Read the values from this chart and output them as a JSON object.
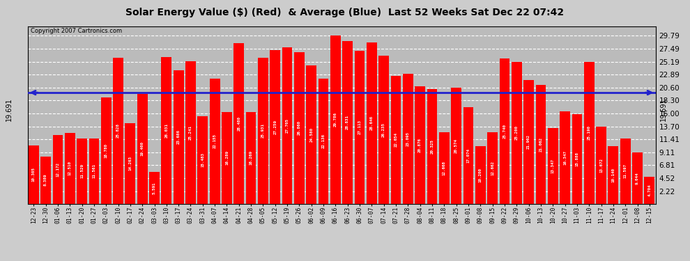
{
  "title": "Solar Energy Value ($) (Red)  & Average (Blue)  Last 52 Weeks Sat Dec 22 07:42",
  "copyright": "Copyright 2007 Cartronics.com",
  "average_value": 19.691,
  "bar_color": "#ff0000",
  "avg_line_color": "#2222cc",
  "background_color": "#cccccc",
  "plot_bg_color": "#bbbbbb",
  "grid_color": "#ffffff",
  "ylim": [
    0,
    31.5
  ],
  "yticks": [
    2.22,
    4.52,
    6.81,
    9.11,
    11.41,
    13.7,
    16.0,
    18.3,
    20.6,
    22.89,
    25.19,
    27.49,
    29.79
  ],
  "categories": [
    "12-23",
    "12-30",
    "01-06",
    "01-13",
    "01-20",
    "01-27",
    "02-03",
    "02-10",
    "02-17",
    "02-24",
    "03-03",
    "03-10",
    "03-17",
    "03-24",
    "03-31",
    "04-07",
    "04-14",
    "04-21",
    "04-28",
    "05-05",
    "05-12",
    "05-19",
    "05-26",
    "06-02",
    "06-09",
    "06-16",
    "06-23",
    "06-30",
    "07-07",
    "07-14",
    "07-21",
    "07-28",
    "08-04",
    "08-11",
    "08-18",
    "08-25",
    "09-01",
    "09-08",
    "09-15",
    "09-22",
    "09-29",
    "10-06",
    "10-13",
    "10-20",
    "10-27",
    "11-03",
    "11-10",
    "11-17",
    "11-24",
    "12-01",
    "12-08",
    "12-15"
  ],
  "values": [
    10.305,
    8.389,
    12.172,
    12.51,
    11.529,
    11.561,
    18.78,
    25.828,
    14.263,
    19.4,
    5.591,
    26.031,
    23.686,
    25.241,
    15.483,
    22.155,
    16.289,
    28.48,
    16.269,
    25.931,
    27.259,
    27.705,
    26.86,
    24.58,
    22.136,
    29.786,
    28.831,
    27.113,
    28.646,
    26.235,
    22.654,
    23.095,
    20.876,
    20.325,
    12.668,
    20.574,
    17.074,
    10.2,
    12.662,
    25.74,
    25.2,
    21.962,
    21.062,
    13.347,
    16.347,
    15.888,
    25.19,
    13.672,
    10.14,
    11.597,
    9.044,
    4.704
  ]
}
